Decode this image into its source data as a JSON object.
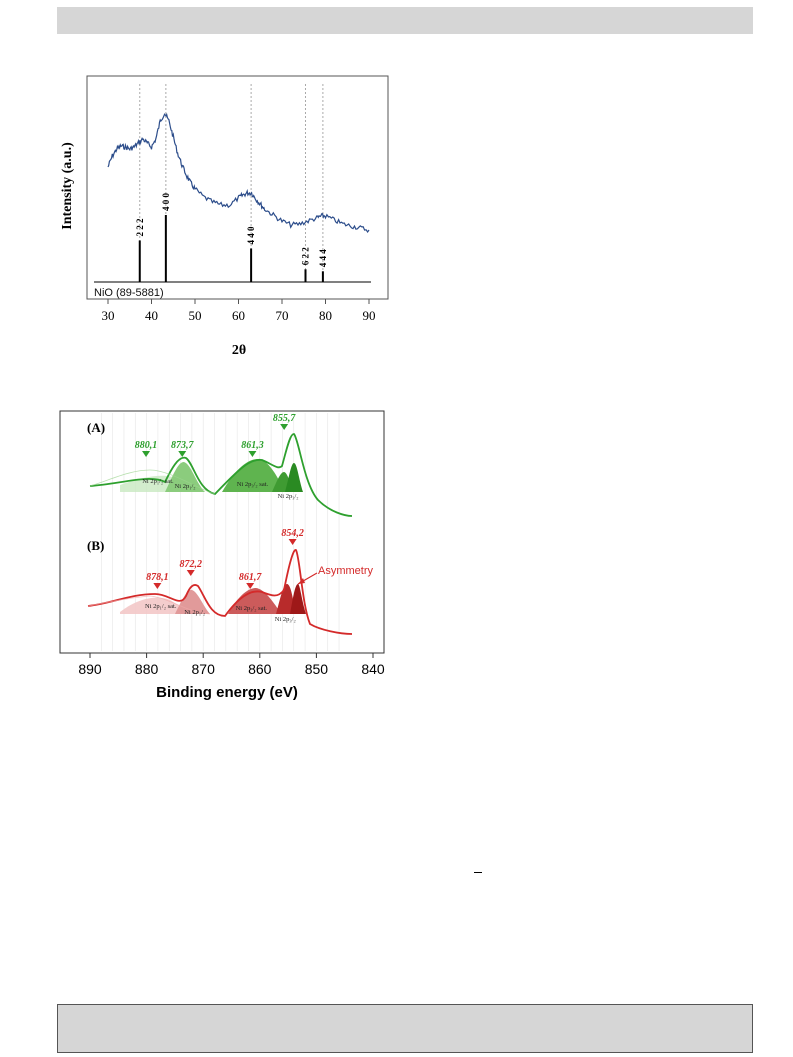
{
  "chart_data": [
    {
      "type": "line",
      "xlabel": "2θ",
      "ylabel": "Intensity (a.u.)",
      "xlim": [
        27,
        93
      ],
      "x_ticks": [
        30,
        40,
        50,
        60,
        70,
        80,
        90
      ],
      "reference_label": "NiO (89-5881)",
      "reference_peaks": [
        {
          "x": 37.3,
          "hkl": "2 2 2",
          "rel_intensity": 0.62
        },
        {
          "x": 43.3,
          "hkl": "4 0 0",
          "rel_intensity": 1.0
        },
        {
          "x": 62.9,
          "hkl": "4 4 0",
          "rel_intensity": 0.5
        },
        {
          "x": 75.4,
          "hkl": "6 2 2",
          "rel_intensity": 0.19
        },
        {
          "x": 79.4,
          "hkl": "4 4 4",
          "rel_intensity": 0.16
        }
      ],
      "pattern_color": "#2b4c8a",
      "pattern": {
        "x": [
          30,
          31,
          32,
          33,
          34,
          35,
          36,
          37,
          38,
          39,
          40,
          41,
          42,
          43,
          44,
          45,
          46,
          47,
          48,
          49,
          50,
          52,
          54,
          56,
          58,
          60,
          61,
          62,
          63,
          64,
          65,
          66,
          68,
          70,
          72,
          74,
          76,
          78,
          79,
          80,
          82,
          84,
          86,
          88,
          90
        ],
        "y": [
          126,
          115,
          108,
          105,
          106,
          108,
          106,
          102,
          98,
          102,
          106,
          98,
          80,
          72,
          80,
          96,
          112,
          124,
          134,
          142,
          148,
          156,
          161,
          164,
          164,
          157,
          154,
          152,
          152,
          158,
          163,
          168,
          174,
          180,
          184,
          183,
          180,
          177,
          175,
          175,
          179,
          183,
          185,
          187,
          189
        ]
      },
      "grid": false
    },
    {
      "type": "line",
      "xlabel": "Binding energy (eV)",
      "xlim": [
        892,
        840
      ],
      "x_ticks": [
        890,
        880,
        870,
        860,
        850,
        840
      ],
      "reversed_x": true,
      "panels": [
        {
          "label": "(A)",
          "color": "#2ea02e",
          "peak_labels": [
            {
              "x": 880.1,
              "text": "880,1"
            },
            {
              "x": 873.7,
              "text": "873,7"
            },
            {
              "x": 861.3,
              "text": "861,3"
            },
            {
              "x": 855.7,
              "text": "855,7"
            }
          ],
          "component_labels": [
            {
              "x": 878,
              "text": "Ni 2p₁/₂ sat."
            },
            {
              "x": 873.2,
              "text": "Ni 2p₁/₂"
            },
            {
              "x": 861.3,
              "text": "Ni 2p₃/₂ sat."
            },
            {
              "x": 855,
              "text": "Ni 2p₃/₂"
            }
          ]
        },
        {
          "label": "(B)",
          "color": "#d42a2a",
          "peak_labels": [
            {
              "x": 878.1,
              "text": "878,1"
            },
            {
              "x": 872.2,
              "text": "872,2"
            },
            {
              "x": 861.7,
              "text": "861,7"
            },
            {
              "x": 854.2,
              "text": "854,2"
            }
          ],
          "component_labels": [
            {
              "x": 877.5,
              "text": "Ni 2p₁/₂ sat."
            },
            {
              "x": 871.5,
              "text": "Ni 2p₁/₂"
            },
            {
              "x": 861.5,
              "text": "Ni 2p₃/₂ sat."
            },
            {
              "x": 855.5,
              "text": "Ni 2p₃/₂"
            }
          ],
          "annotation": "Asymmetry"
        }
      ],
      "grid": true
    }
  ]
}
